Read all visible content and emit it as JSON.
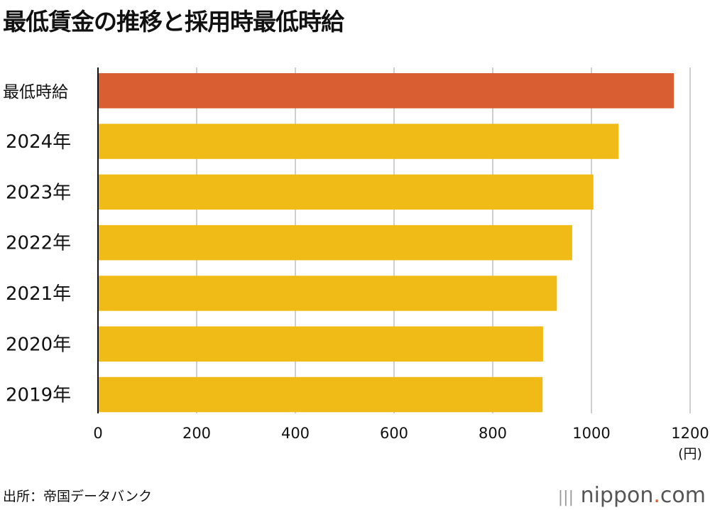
{
  "chart_data": {
    "type": "bar",
    "orientation": "horizontal",
    "title": "最低賃金の推移と採用時最低時給",
    "categories": [
      "最低時給",
      "2024年",
      "2023年",
      "2022年",
      "2021年",
      "2020年",
      "2019年"
    ],
    "values": [
      1167,
      1055,
      1004,
      961,
      930,
      902,
      901
    ],
    "colors": [
      "#d95f32",
      "#f0bb16",
      "#f0bb16",
      "#f0bb16",
      "#f0bb16",
      "#f0bb16",
      "#f0bb16"
    ],
    "xlim": [
      0,
      1200
    ],
    "xticks": [
      "0",
      "200",
      "400",
      "600",
      "800",
      "1000",
      "1200"
    ],
    "xunit": "(円)",
    "grid": "vertical"
  },
  "source": "出所：帝国データバンク",
  "logo": {
    "text": "nippon",
    "dot": ".",
    "suffix": "com"
  }
}
